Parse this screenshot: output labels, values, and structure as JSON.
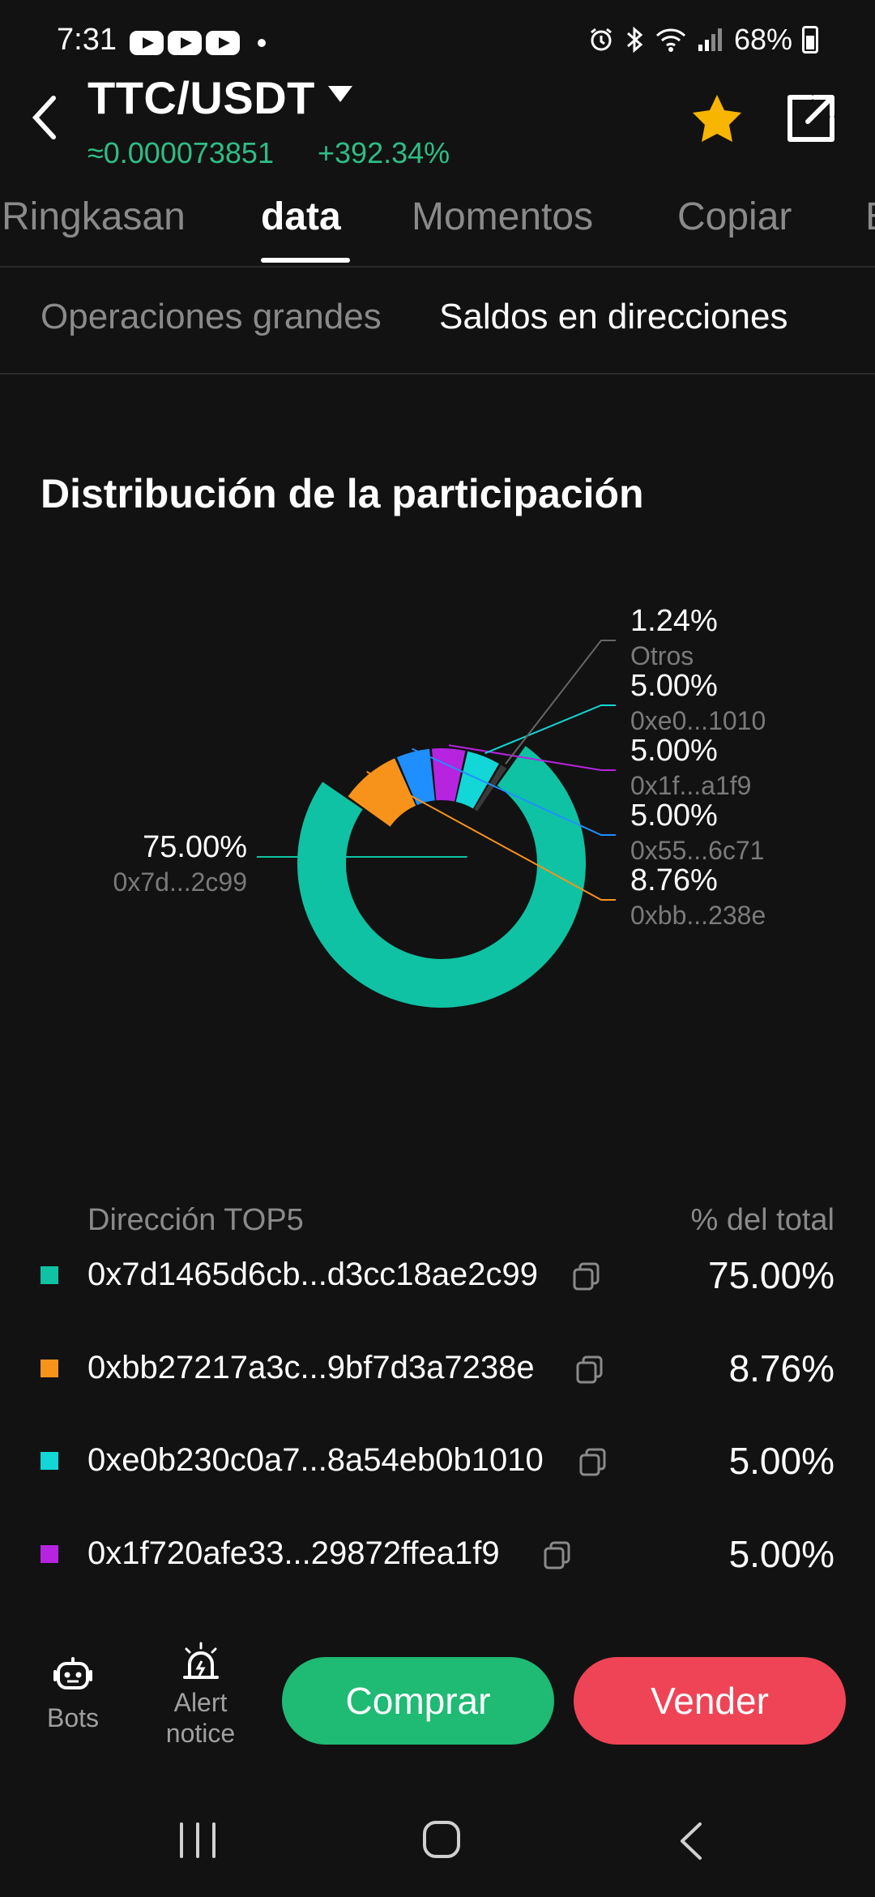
{
  "status_bar": {
    "time": "7:31",
    "battery": "68%",
    "icons": [
      "youtube-icon",
      "youtube-icon",
      "youtube-icon",
      "alarm-icon",
      "bluetooth-icon",
      "wifi-icon",
      "signal-icon",
      "battery-icon"
    ]
  },
  "header": {
    "pair": "TTC/USDT",
    "price": "≈0.000073851",
    "change": "+392.34%",
    "positive_color": "#2ebd85",
    "favorite_color": "#f7b500"
  },
  "tabs": [
    {
      "label": "Ringkasan",
      "active": false
    },
    {
      "label": "data",
      "active": true
    },
    {
      "label": "Momentos",
      "active": false
    },
    {
      "label": "Copiar",
      "active": false
    },
    {
      "label": "E",
      "active": false
    }
  ],
  "subtabs": [
    {
      "label": "Operaciones grandes",
      "active": false
    },
    {
      "label": "Saldos en direcciones",
      "active": true
    }
  ],
  "section_title": "Distribución de la participación",
  "chart_data": {
    "type": "pie",
    "donut": true,
    "slices": [
      {
        "label": "0x7d...2c99",
        "value": 75.0,
        "value_text": "75.00%",
        "color": "#0fc2a3"
      },
      {
        "label": "0xbb...238e",
        "value": 8.76,
        "value_text": "8.76%",
        "color": "#f7931a"
      },
      {
        "label": "0x55...6c71",
        "value": 5.0,
        "value_text": "5.00%",
        "color": "#1f8fff"
      },
      {
        "label": "0x1f...a1f9",
        "value": 5.0,
        "value_text": "5.00%",
        "color": "#b624e0"
      },
      {
        "label": "0xe0...1010",
        "value": 5.0,
        "value_text": "5.00%",
        "color": "#13d6d6"
      },
      {
        "label": "Otros",
        "value": 1.24,
        "value_text": "1.24%",
        "color": "#3a3a3a"
      }
    ]
  },
  "table": {
    "col_address": "Dirección TOP5",
    "col_pct": "% del total",
    "rows": [
      {
        "address": "0x7d1465d6cb...d3cc18ae2c99",
        "pct": "75.00%",
        "color": "#0fc2a3"
      },
      {
        "address": "0xbb27217a3c...9bf7d3a7238e",
        "pct": "8.76%",
        "color": "#f7931a"
      },
      {
        "address": "0xe0b230c0a7...8a54eb0b1010",
        "pct": "5.00%",
        "color": "#13d6d6"
      },
      {
        "address": "0x1f720afe33...29872ffea1f9",
        "pct": "5.00%",
        "color": "#b624e0"
      }
    ]
  },
  "actions": {
    "bots": "Bots",
    "alert_line1": "Alert",
    "alert_line2": "notice",
    "buy": "Comprar",
    "sell": "Vender"
  }
}
